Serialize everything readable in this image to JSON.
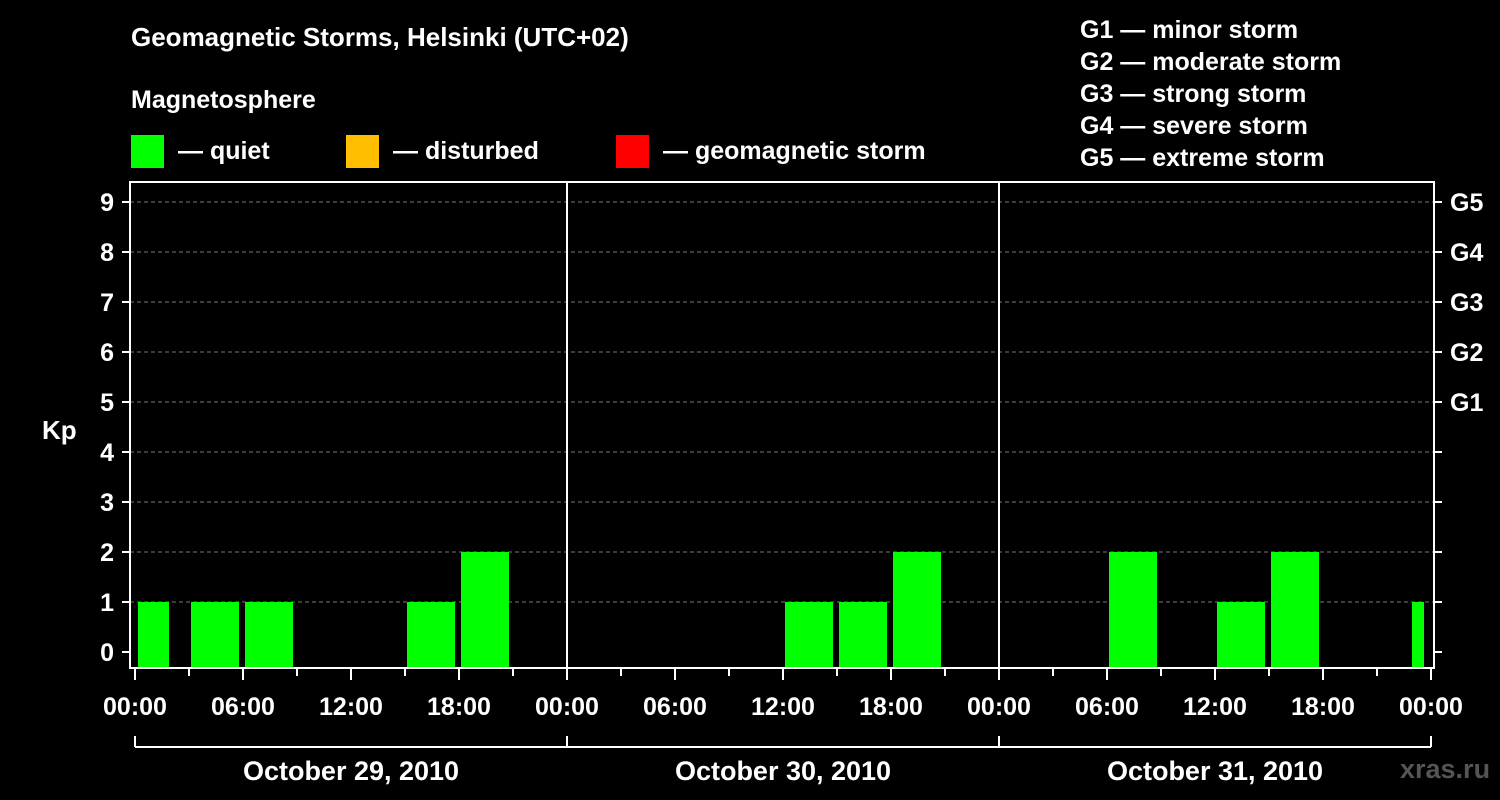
{
  "header": {
    "title": "Geomagnetic Storms, Helsinki (UTC+02)",
    "subtitle": "Magnetosphere"
  },
  "legend": [
    {
      "label": "— quiet",
      "color": "#00ff00"
    },
    {
      "label": "— disturbed",
      "color": "#ffbf00"
    },
    {
      "label": "— geomagnetic storm",
      "color": "#ff0000"
    }
  ],
  "gscale": [
    "G1 — minor storm",
    "G2 — moderate storm",
    "G3 — strong storm",
    "G4 — severe storm",
    "G5 — extreme storm"
  ],
  "watermark": "xras.ru",
  "chart_data": {
    "type": "bar",
    "ylabel": "Kp",
    "ylim": [
      0,
      9
    ],
    "yticks": [
      0,
      1,
      2,
      3,
      4,
      5,
      6,
      7,
      8,
      9
    ],
    "right_axis_labels": [
      {
        "kp": 5,
        "label": "G1"
      },
      {
        "kp": 6,
        "label": "G2"
      },
      {
        "kp": 7,
        "label": "G3"
      },
      {
        "kp": 8,
        "label": "G4"
      },
      {
        "kp": 9,
        "label": "G5"
      }
    ],
    "x_tick_labels": [
      "00:00",
      "06:00",
      "12:00",
      "18:00",
      "00:00",
      "06:00",
      "12:00",
      "18:00",
      "00:00",
      "06:00",
      "12:00",
      "18:00",
      "00:00"
    ],
    "days": [
      "October 29, 2010",
      "October 30, 2010",
      "October 31, 2010"
    ],
    "interval_hours": 3,
    "values": [
      1,
      1,
      1,
      null,
      null,
      1,
      2,
      null,
      null,
      null,
      null,
      null,
      1,
      1,
      2,
      null,
      null,
      null,
      2,
      null,
      1,
      2,
      null,
      null
    ],
    "trailing_value": 1,
    "bar_color": "#00ff00",
    "grid": true
  }
}
